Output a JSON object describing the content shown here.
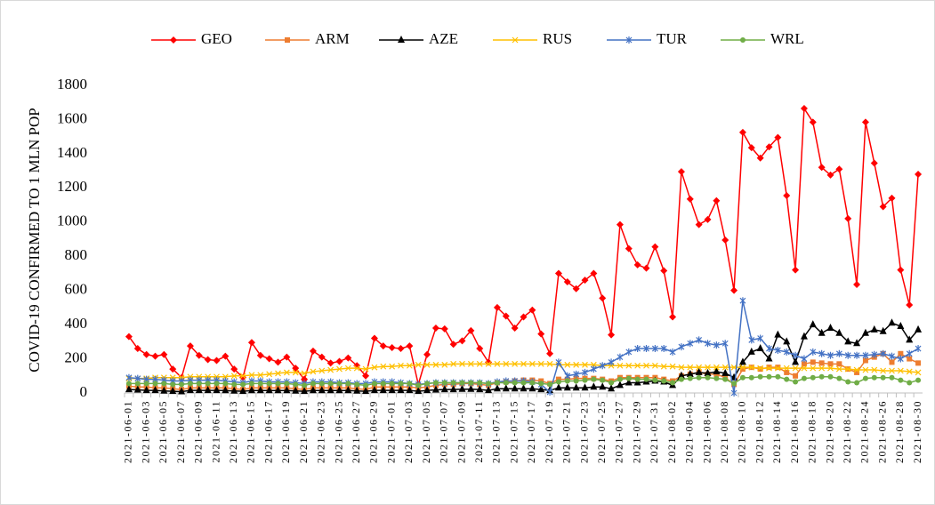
{
  "chart_data": {
    "type": "line",
    "y_label": "COVID-19 CONFIRMED TO 1 MLN POP",
    "categories": [
      "2021-06-01",
      null,
      "2021-06-03",
      null,
      "2021-06-05",
      null,
      "2021-06-07",
      null,
      "2021-06-09",
      null,
      "2021-06-11",
      null,
      "2021-06-13",
      null,
      "2021-06-15",
      null,
      "2021-06-17",
      null,
      "2021-06-19",
      null,
      "2021-06-21",
      null,
      "2021-06-23",
      null,
      "2021-06-25",
      null,
      "2021-06-27",
      null,
      "2021-06-29",
      null,
      "2021-07-01",
      null,
      "2021-07-03",
      null,
      "2021-07-05",
      null,
      "2021-07-07",
      null,
      "2021-07-09",
      null,
      "2021-07-11",
      null,
      "2021-07-13",
      null,
      "2021-07-15",
      null,
      "2021-07-17",
      null,
      "2021-07-19",
      null,
      "2021-07-21",
      null,
      "2021-07-23",
      null,
      "2021-07-25",
      null,
      "2021-07-27",
      null,
      "2021-07-29",
      null,
      "2021-07-31",
      null,
      "2021-08-02",
      null,
      "2021-08-04",
      null,
      "2021-08-06",
      null,
      "2021-08-08",
      null,
      "2021-08-10",
      null,
      "2021-08-12",
      null,
      "2021-08-14",
      null,
      "2021-08-16",
      null,
      "2021-08-18",
      null,
      "2021-08-20",
      null,
      "2021-08-22",
      null,
      "2021-08-24",
      null,
      "2021-08-26",
      null,
      "2021-08-28",
      null,
      "2021-08-30"
    ],
    "series": [
      {
        "name": "GEO",
        "color": "#ff0000",
        "marker": "diamond",
        "values": [
          330,
          260,
          225,
          215,
          225,
          140,
          90,
          275,
          220,
          195,
          190,
          215,
          140,
          90,
          295,
          220,
          200,
          180,
          210,
          145,
          80,
          245,
          210,
          175,
          185,
          205,
          160,
          100,
          320,
          275,
          265,
          260,
          275,
          50,
          225,
          380,
          375,
          285,
          305,
          365,
          260,
          180,
          500,
          450,
          380,
          445,
          485,
          345,
          230,
          700,
          650,
          610,
          660,
          700,
          555,
          340,
          985,
          845,
          750,
          730,
          855,
          715,
          445,
          1295,
          1135,
          985,
          1015,
          1125,
          895,
          600,
          1525,
          1435,
          1375,
          1440,
          1495,
          1155,
          720,
          1665,
          1585,
          1320,
          1275,
          1310,
          1020,
          635,
          1585,
          1345,
          1090,
          1140,
          720,
          515,
          1280
        ]
      },
      {
        "name": "ARM",
        "color": "#ed7d31",
        "marker": "square",
        "values": [
          40,
          35,
          35,
          30,
          30,
          25,
          20,
          30,
          30,
          30,
          30,
          30,
          25,
          20,
          30,
          30,
          30,
          30,
          30,
          25,
          20,
          30,
          30,
          30,
          30,
          30,
          25,
          20,
          35,
          35,
          35,
          35,
          35,
          30,
          35,
          45,
          50,
          50,
          55,
          55,
          50,
          45,
          60,
          65,
          70,
          75,
          75,
          70,
          55,
          80,
          80,
          85,
          85,
          85,
          80,
          70,
          90,
          90,
          90,
          90,
          90,
          80,
          70,
          100,
          110,
          120,
          110,
          110,
          90,
          50,
          140,
          150,
          140,
          150,
          150,
          120,
          100,
          170,
          180,
          175,
          170,
          170,
          140,
          120,
          190,
          210,
          230,
          180,
          230,
          200,
          175
        ]
      },
      {
        "name": "AZE",
        "color": "#000000",
        "marker": "triangle",
        "values": [
          20,
          18,
          15,
          15,
          12,
          10,
          8,
          15,
          15,
          15,
          15,
          14,
          12,
          10,
          14,
          14,
          14,
          14,
          14,
          12,
          10,
          14,
          14,
          14,
          14,
          14,
          12,
          10,
          15,
          15,
          15,
          15,
          15,
          10,
          15,
          18,
          20,
          20,
          22,
          22,
          20,
          15,
          25,
          25,
          25,
          25,
          25,
          20,
          15,
          30,
          30,
          30,
          30,
          35,
          35,
          25,
          45,
          60,
          60,
          65,
          70,
          65,
          45,
          100,
          110,
          120,
          115,
          125,
          115,
          90,
          180,
          240,
          260,
          200,
          340,
          300,
          180,
          330,
          400,
          350,
          380,
          350,
          300,
          290,
          350,
          370,
          360,
          410,
          390,
          310,
          370
        ]
      },
      {
        "name": "RUS",
        "color": "#ffc000",
        "marker": "x",
        "values": [
          85,
          85,
          85,
          90,
          90,
          90,
          90,
          95,
          95,
          95,
          95,
          95,
          100,
          100,
          105,
          105,
          110,
          115,
          120,
          120,
          115,
          125,
          130,
          135,
          140,
          145,
          145,
          140,
          150,
          155,
          155,
          160,
          160,
          165,
          165,
          165,
          165,
          170,
          170,
          170,
          170,
          170,
          170,
          170,
          170,
          170,
          170,
          170,
          170,
          165,
          165,
          165,
          165,
          165,
          160,
          160,
          160,
          160,
          160,
          160,
          160,
          155,
          155,
          150,
          150,
          150,
          150,
          150,
          150,
          150,
          150,
          150,
          145,
          145,
          145,
          145,
          145,
          145,
          145,
          145,
          145,
          140,
          140,
          135,
          135,
          135,
          130,
          130,
          130,
          125,
          120
        ]
      },
      {
        "name": "TUR",
        "color": "#4472c4",
        "marker": "star",
        "values": [
          90,
          85,
          80,
          80,
          75,
          70,
          70,
          75,
          75,
          75,
          75,
          70,
          65,
          60,
          70,
          70,
          65,
          65,
          65,
          60,
          55,
          65,
          65,
          65,
          60,
          60,
          55,
          55,
          65,
          65,
          65,
          60,
          55,
          50,
          55,
          60,
          60,
          60,
          60,
          60,
          60,
          55,
          65,
          70,
          70,
          70,
          65,
          50,
          5,
          180,
          100,
          110,
          120,
          140,
          160,
          180,
          210,
          240,
          260,
          260,
          260,
          260,
          240,
          270,
          290,
          310,
          290,
          280,
          290,
          0,
          540,
          310,
          320,
          260,
          250,
          240,
          220,
          200,
          240,
          230,
          220,
          230,
          220,
          220,
          220,
          225,
          230,
          215,
          200,
          230,
          260
        ]
      },
      {
        "name": "WRL",
        "color": "#70ad47",
        "marker": "circle",
        "values": [
          55,
          55,
          55,
          55,
          55,
          50,
          50,
          55,
          55,
          55,
          55,
          55,
          50,
          50,
          55,
          55,
          55,
          55,
          55,
          50,
          45,
          55,
          55,
          55,
          55,
          55,
          50,
          45,
          55,
          55,
          55,
          55,
          55,
          45,
          55,
          60,
          60,
          60,
          60,
          60,
          60,
          55,
          60,
          60,
          60,
          60,
          60,
          55,
          50,
          65,
          70,
          70,
          75,
          80,
          75,
          60,
          80,
          85,
          80,
          80,
          75,
          70,
          60,
          80,
          85,
          90,
          90,
          85,
          80,
          55,
          90,
          90,
          95,
          95,
          95,
          80,
          65,
          85,
          90,
          95,
          95,
          85,
          65,
          60,
          85,
          90,
          90,
          90,
          75,
          60,
          75
        ]
      }
    ],
    "ylim": [
      0,
      1800
    ],
    "yticks": [
      0,
      200,
      400,
      600,
      800,
      1000,
      1200,
      1400,
      1600,
      1800
    ],
    "grid": false,
    "legend": "top"
  }
}
